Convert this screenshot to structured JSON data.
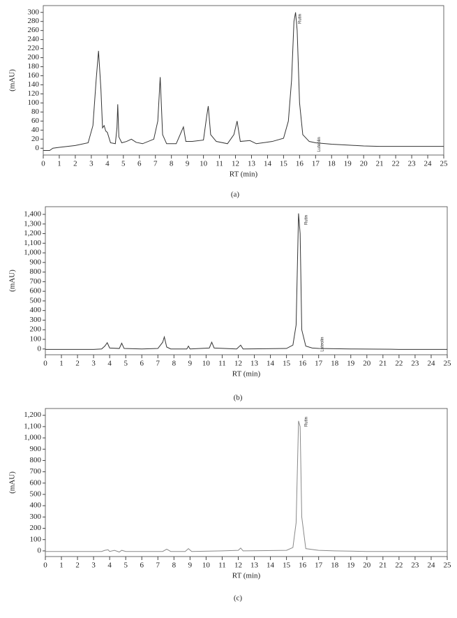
{
  "chart_data": [
    {
      "type": "line",
      "caption": "(a)",
      "x_label": "RT (min)",
      "y_label": "(mAU)",
      "color": "#333333",
      "xlim": [
        0,
        25
      ],
      "xticks": [
        0,
        1,
        2,
        3,
        4,
        5,
        6,
        7,
        8,
        9,
        10,
        11,
        12,
        13,
        14,
        15,
        16,
        17,
        18,
        19,
        20,
        21,
        22,
        23,
        24,
        25
      ],
      "ylim": [
        -15,
        315
      ],
      "yticks": [
        0,
        20,
        40,
        60,
        80,
        100,
        120,
        140,
        160,
        180,
        200,
        220,
        240,
        260,
        280,
        300
      ],
      "x": [
        0,
        0.4,
        0.6,
        1,
        2,
        2.8,
        3.1,
        3.3,
        3.45,
        3.6,
        3.7,
        3.8,
        3.9,
        4.0,
        4.2,
        4.5,
        4.6,
        4.65,
        4.72,
        4.9,
        5.2,
        5.5,
        5.8,
        6.2,
        6.9,
        7.15,
        7.3,
        7.45,
        7.7,
        8.3,
        8.75,
        8.9,
        9.3,
        10.0,
        10.2,
        10.3,
        10.45,
        10.8,
        11.5,
        11.9,
        12.1,
        12.3,
        12.9,
        13.3,
        14.3,
        15.0,
        15.3,
        15.5,
        15.65,
        15.75,
        15.85,
        16.0,
        16.2,
        16.6,
        17,
        18,
        19,
        20,
        21,
        22,
        25
      ],
      "values": [
        -5,
        -5,
        0,
        2,
        6,
        12,
        50,
        150,
        215,
        130,
        45,
        50,
        38,
        35,
        12,
        10,
        45,
        97,
        25,
        12,
        15,
        20,
        13,
        10,
        20,
        60,
        157,
        30,
        10,
        10,
        47,
        15,
        15,
        18,
        70,
        93,
        30,
        15,
        10,
        30,
        60,
        15,
        17,
        10,
        15,
        22,
        60,
        150,
        280,
        300,
        260,
        100,
        30,
        15,
        12,
        9,
        7,
        5,
        4,
        4,
        4
      ],
      "annotations": [
        {
          "text": "Rutin",
          "x": 15.9
        },
        {
          "text": "Luteolin",
          "x": 17.1
        }
      ]
    },
    {
      "type": "line",
      "caption": "(b)",
      "x_label": "RT (min)",
      "y_label": "(mAU)",
      "color": "#333333",
      "xlim": [
        0,
        25
      ],
      "xticks": [
        0,
        1,
        2,
        3,
        4,
        5,
        6,
        7,
        8,
        9,
        10,
        11,
        12,
        13,
        14,
        15,
        16,
        17,
        18,
        19,
        20,
        21,
        22,
        23,
        24,
        25
      ],
      "ylim": [
        -60,
        1480
      ],
      "yticks": [
        0,
        100,
        200,
        300,
        400,
        500,
        600,
        700,
        800,
        900,
        {
          "value": 1000,
          "label": "1,000"
        },
        {
          "value": 1100,
          "label": "1,100"
        },
        {
          "value": 1200,
          "label": "1,200"
        },
        {
          "value": 1300,
          "label": "1,300"
        },
        {
          "value": 1400,
          "label": "1,400"
        }
      ],
      "x": [
        0,
        3,
        3.5,
        3.7,
        3.85,
        4.0,
        4.6,
        4.75,
        4.9,
        6,
        7.0,
        7.3,
        7.4,
        7.55,
        7.8,
        8.8,
        8.9,
        9.0,
        10.2,
        10.35,
        10.5,
        11.9,
        12.15,
        12.3,
        15.0,
        15.4,
        15.6,
        15.75,
        15.85,
        15.95,
        16.2,
        16.6,
        17,
        19,
        21.5,
        22,
        25
      ],
      "values": [
        -5,
        -5,
        0,
        30,
        65,
        10,
        5,
        60,
        5,
        0,
        5,
        70,
        125,
        20,
        0,
        0,
        30,
        0,
        10,
        70,
        10,
        0,
        40,
        0,
        5,
        40,
        250,
        1410,
        1200,
        200,
        30,
        10,
        5,
        0,
        -3,
        -5,
        -5
      ],
      "annotations": [
        {
          "text": "Rutin",
          "x": 16.1
        },
        {
          "text": "Luteolin",
          "x": 17.1
        }
      ]
    },
    {
      "type": "line",
      "caption": "(c)",
      "x_label": "RT (min)",
      "y_label": "(mAU)",
      "color": "#888888",
      "xlim": [
        0,
        25
      ],
      "xticks": [
        0,
        1,
        2,
        3,
        4,
        5,
        6,
        7,
        8,
        9,
        10,
        11,
        12,
        13,
        14,
        15,
        16,
        17,
        18,
        19,
        20,
        21,
        22,
        23,
        24,
        25
      ],
      "ylim": [
        -50,
        1260
      ],
      "yticks": [
        0,
        100,
        200,
        300,
        400,
        500,
        600,
        700,
        800,
        900,
        {
          "value": 1000,
          "label": "1,000"
        },
        {
          "value": 1100,
          "label": "1,100"
        },
        {
          "value": 1200,
          "label": "1,200"
        }
      ],
      "x": [
        0,
        3.5,
        3.7,
        3.9,
        4.0,
        4.3,
        4.6,
        4.75,
        5,
        7.3,
        7.55,
        7.8,
        8.7,
        8.9,
        9.1,
        11,
        12,
        12.15,
        12.3,
        15,
        15.4,
        15.6,
        15.75,
        15.85,
        15.95,
        16.2,
        17,
        18,
        20,
        25
      ],
      "values": [
        -5,
        -5,
        5,
        10,
        -5,
        5,
        -10,
        5,
        -5,
        -5,
        15,
        -5,
        -5,
        20,
        -5,
        0,
        5,
        25,
        0,
        5,
        30,
        250,
        1150,
        1100,
        300,
        20,
        5,
        0,
        -5,
        -5
      ],
      "annotations": [
        {
          "text": "Rutin",
          "x": 16.1
        }
      ]
    }
  ]
}
